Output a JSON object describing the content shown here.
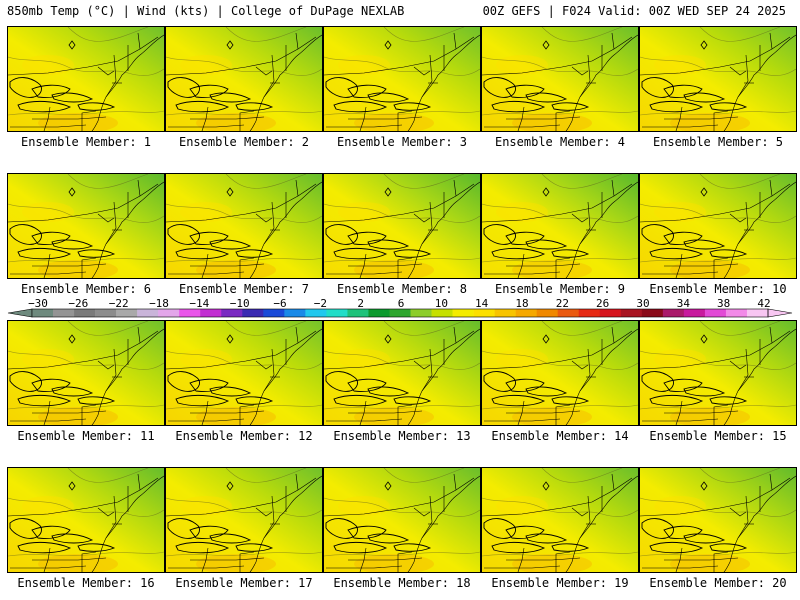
{
  "header": {
    "left_title": "850mb Temp (°C) | Wind (kts) | College of DuPage NEXLAB",
    "right_title": "00Z GEFS | F024 Valid: 00Z WED SEP 24 2025"
  },
  "panels": [
    {
      "label": "Ensemble Member: 1",
      "green_depth": 0.3,
      "warm_tint": 0.55
    },
    {
      "label": "Ensemble Member: 2",
      "green_depth": 0.35,
      "warm_tint": 0.5
    },
    {
      "label": "Ensemble Member: 3",
      "green_depth": 0.3,
      "warm_tint": 0.45
    },
    {
      "label": "Ensemble Member: 4",
      "green_depth": 0.35,
      "warm_tint": 0.6
    },
    {
      "label": "Ensemble Member: 5",
      "green_depth": 0.28,
      "warm_tint": 0.55
    },
    {
      "label": "Ensemble Member: 6",
      "green_depth": 0.5,
      "warm_tint": 0.4
    },
    {
      "label": "Ensemble Member: 7",
      "green_depth": 0.4,
      "warm_tint": 0.55
    },
    {
      "label": "Ensemble Member: 8",
      "green_depth": 0.55,
      "warm_tint": 0.4
    },
    {
      "label": "Ensemble Member: 9",
      "green_depth": 0.55,
      "warm_tint": 0.3
    },
    {
      "label": "Ensemble Member: 10",
      "green_depth": 0.4,
      "warm_tint": 0.55
    },
    {
      "label": "Ensemble Member: 11",
      "green_depth": 0.3,
      "warm_tint": 0.6
    },
    {
      "label": "Ensemble Member: 12",
      "green_depth": 0.25,
      "warm_tint": 0.6
    },
    {
      "label": "Ensemble Member: 13",
      "green_depth": 0.4,
      "warm_tint": 0.45
    },
    {
      "label": "Ensemble Member: 14",
      "green_depth": 0.3,
      "warm_tint": 0.55
    },
    {
      "label": "Ensemble Member: 15",
      "green_depth": 0.4,
      "warm_tint": 0.5
    },
    {
      "label": "Ensemble Member: 16",
      "green_depth": 0.4,
      "warm_tint": 0.55
    },
    {
      "label": "Ensemble Member: 17",
      "green_depth": 0.3,
      "warm_tint": 0.5
    },
    {
      "label": "Ensemble Member: 18",
      "green_depth": 0.35,
      "warm_tint": 0.5
    },
    {
      "label": "Ensemble Member: 19",
      "green_depth": 0.35,
      "warm_tint": 0.5
    },
    {
      "label": "Ensemble Member: 20",
      "green_depth": 0.45,
      "warm_tint": 0.5
    }
  ],
  "colorbar": {
    "labels": [
      "-30",
      "-26",
      "-22",
      "-18",
      "-14",
      "-10",
      "-6",
      "-2",
      "2",
      "6",
      "10",
      "14",
      "18",
      "22",
      "26",
      "30",
      "34",
      "38",
      "42"
    ],
    "colors": [
      "#6e8a7e",
      "#949494",
      "#7a7a7a",
      "#8c8c8c",
      "#a9a9a9",
      "#c9b4d9",
      "#e3a6ea",
      "#ea56ea",
      "#c22ed2",
      "#7a2ac2",
      "#3a2ab2",
      "#1a4ad8",
      "#1a8ae8",
      "#22c8ee",
      "#22ddc8",
      "#1ec27a",
      "#0c9a2e",
      "#2ea62e",
      "#8ccd2a",
      "#c6e000",
      "#f4ec00",
      "#fce000",
      "#f8c400",
      "#f6a800",
      "#f08800",
      "#ea5a10",
      "#e62a14",
      "#d6141e",
      "#a81422",
      "#8a0a1a",
      "#aa1a6a",
      "#c81a9e",
      "#e24ad6",
      "#f28ae8",
      "#f8c6f2"
    ]
  }
}
